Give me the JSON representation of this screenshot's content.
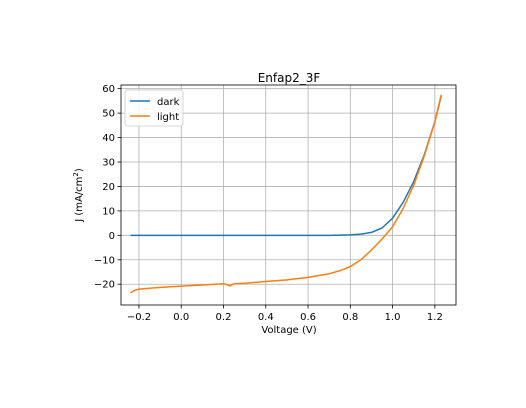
{
  "chart_data": {
    "type": "line",
    "title": "Enfap2_3F",
    "xlabel": "Voltage (V)",
    "ylabel_main": "J (mA/cm",
    "ylabel_sup": "2",
    "ylabel_end": ")",
    "xlim": [
      -0.285,
      1.3
    ],
    "ylim": [
      -28.5,
      61.5
    ],
    "xticks": [
      -0.2,
      0.0,
      0.2,
      0.4,
      0.6,
      0.8,
      1.0,
      1.2
    ],
    "xtick_labels": [
      "−0.2",
      "0.0",
      "0.2",
      "0.4",
      "0.6",
      "0.8",
      "1.0",
      "1.2"
    ],
    "yticks": [
      -20,
      -10,
      0,
      10,
      20,
      30,
      40,
      50,
      60
    ],
    "ytick_labels": [
      "−20",
      "−10",
      "0",
      "10",
      "20",
      "30",
      "40",
      "50",
      "60"
    ],
    "grid": true,
    "legend_position": "top-left",
    "series": [
      {
        "name": "dark",
        "color": "#1f77b4",
        "x": [
          -0.24,
          0.0,
          0.2,
          0.4,
          0.6,
          0.7,
          0.8,
          0.85,
          0.9,
          0.95,
          1.0,
          1.05,
          1.1,
          1.15,
          1.2,
          1.23
        ],
        "y": [
          0.0,
          0.0,
          0.0,
          0.0,
          0.0,
          0.0,
          0.2,
          0.5,
          1.2,
          3.0,
          7.0,
          13.5,
          22.0,
          33.0,
          46.5,
          57.0
        ]
      },
      {
        "name": "light",
        "color": "#ff7f0e",
        "x": [
          -0.24,
          -0.22,
          -0.2,
          -0.1,
          0.0,
          0.1,
          0.2,
          0.21,
          0.23,
          0.25,
          0.3,
          0.4,
          0.5,
          0.6,
          0.7,
          0.75,
          0.8,
          0.85,
          0.9,
          0.95,
          1.0,
          1.05,
          1.1,
          1.15,
          1.2,
          1.23
        ],
        "y": [
          -23.5,
          -22.5,
          -22.0,
          -21.3,
          -20.8,
          -20.3,
          -19.8,
          -20.0,
          -20.7,
          -19.8,
          -19.6,
          -18.9,
          -18.2,
          -17.2,
          -15.7,
          -14.5,
          -12.8,
          -10.0,
          -6.0,
          -1.5,
          3.5,
          11.0,
          20.5,
          32.5,
          46.5,
          57.5
        ]
      }
    ]
  }
}
